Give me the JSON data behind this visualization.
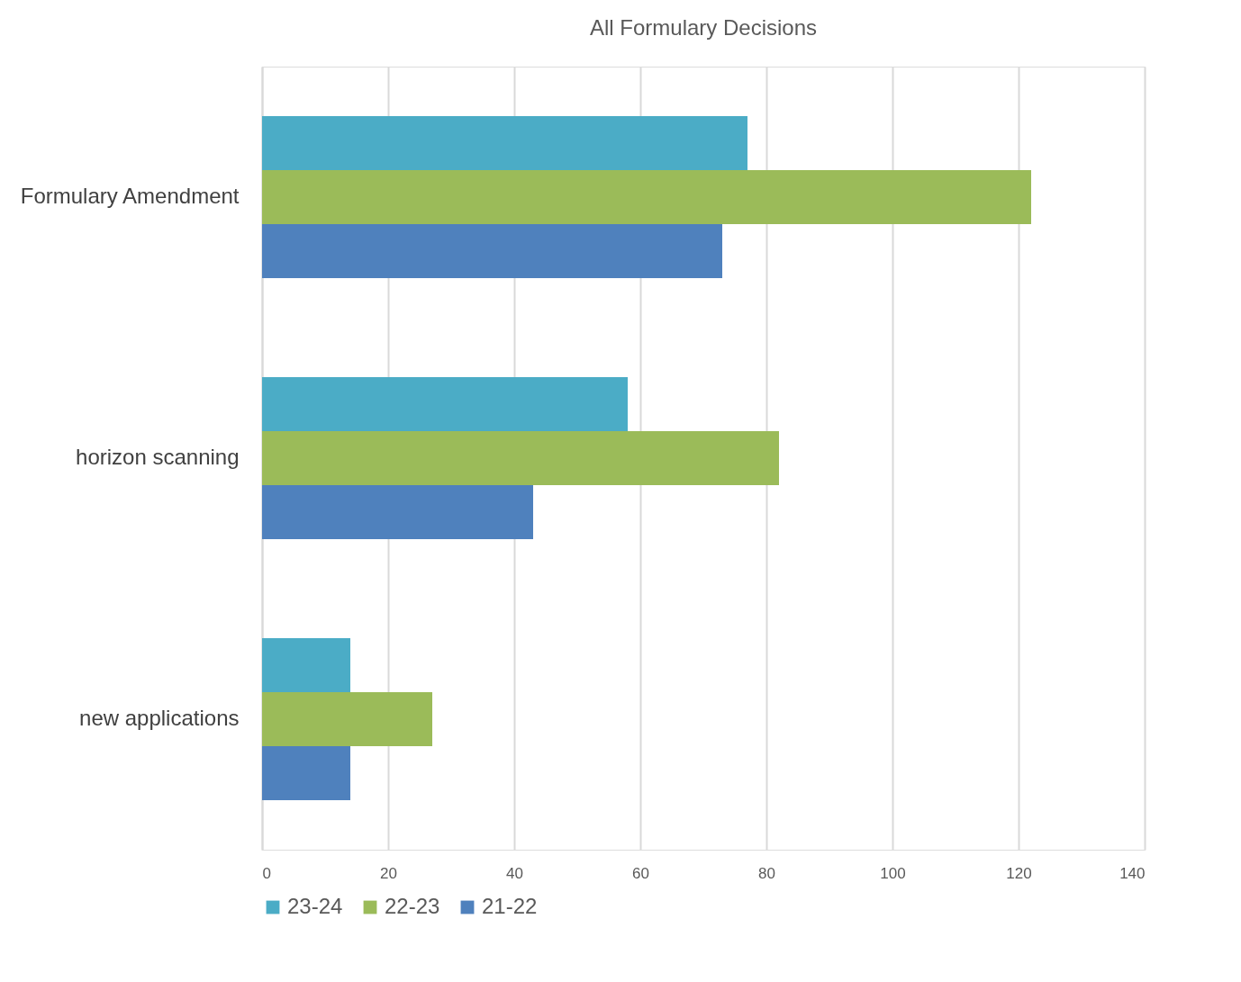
{
  "chart_data": {
    "type": "bar",
    "orientation": "horizontal",
    "title": "All Formulary Decisions",
    "categories": [
      "Formulary Amendment",
      "horizon scanning",
      "new applications"
    ],
    "series": [
      {
        "name": "23-24",
        "color": "#4bacc6",
        "values": [
          77,
          58,
          14
        ]
      },
      {
        "name": "22-23",
        "color": "#9bbb59",
        "values": [
          122,
          82,
          27
        ]
      },
      {
        "name": "21-22",
        "color": "#4f81bd",
        "values": [
          73,
          43,
          14
        ]
      }
    ],
    "xlim": [
      0,
      140
    ],
    "xticks": [
      0,
      20,
      40,
      60,
      80,
      100,
      120,
      140
    ],
    "grid": "x",
    "legend": "bottom"
  }
}
